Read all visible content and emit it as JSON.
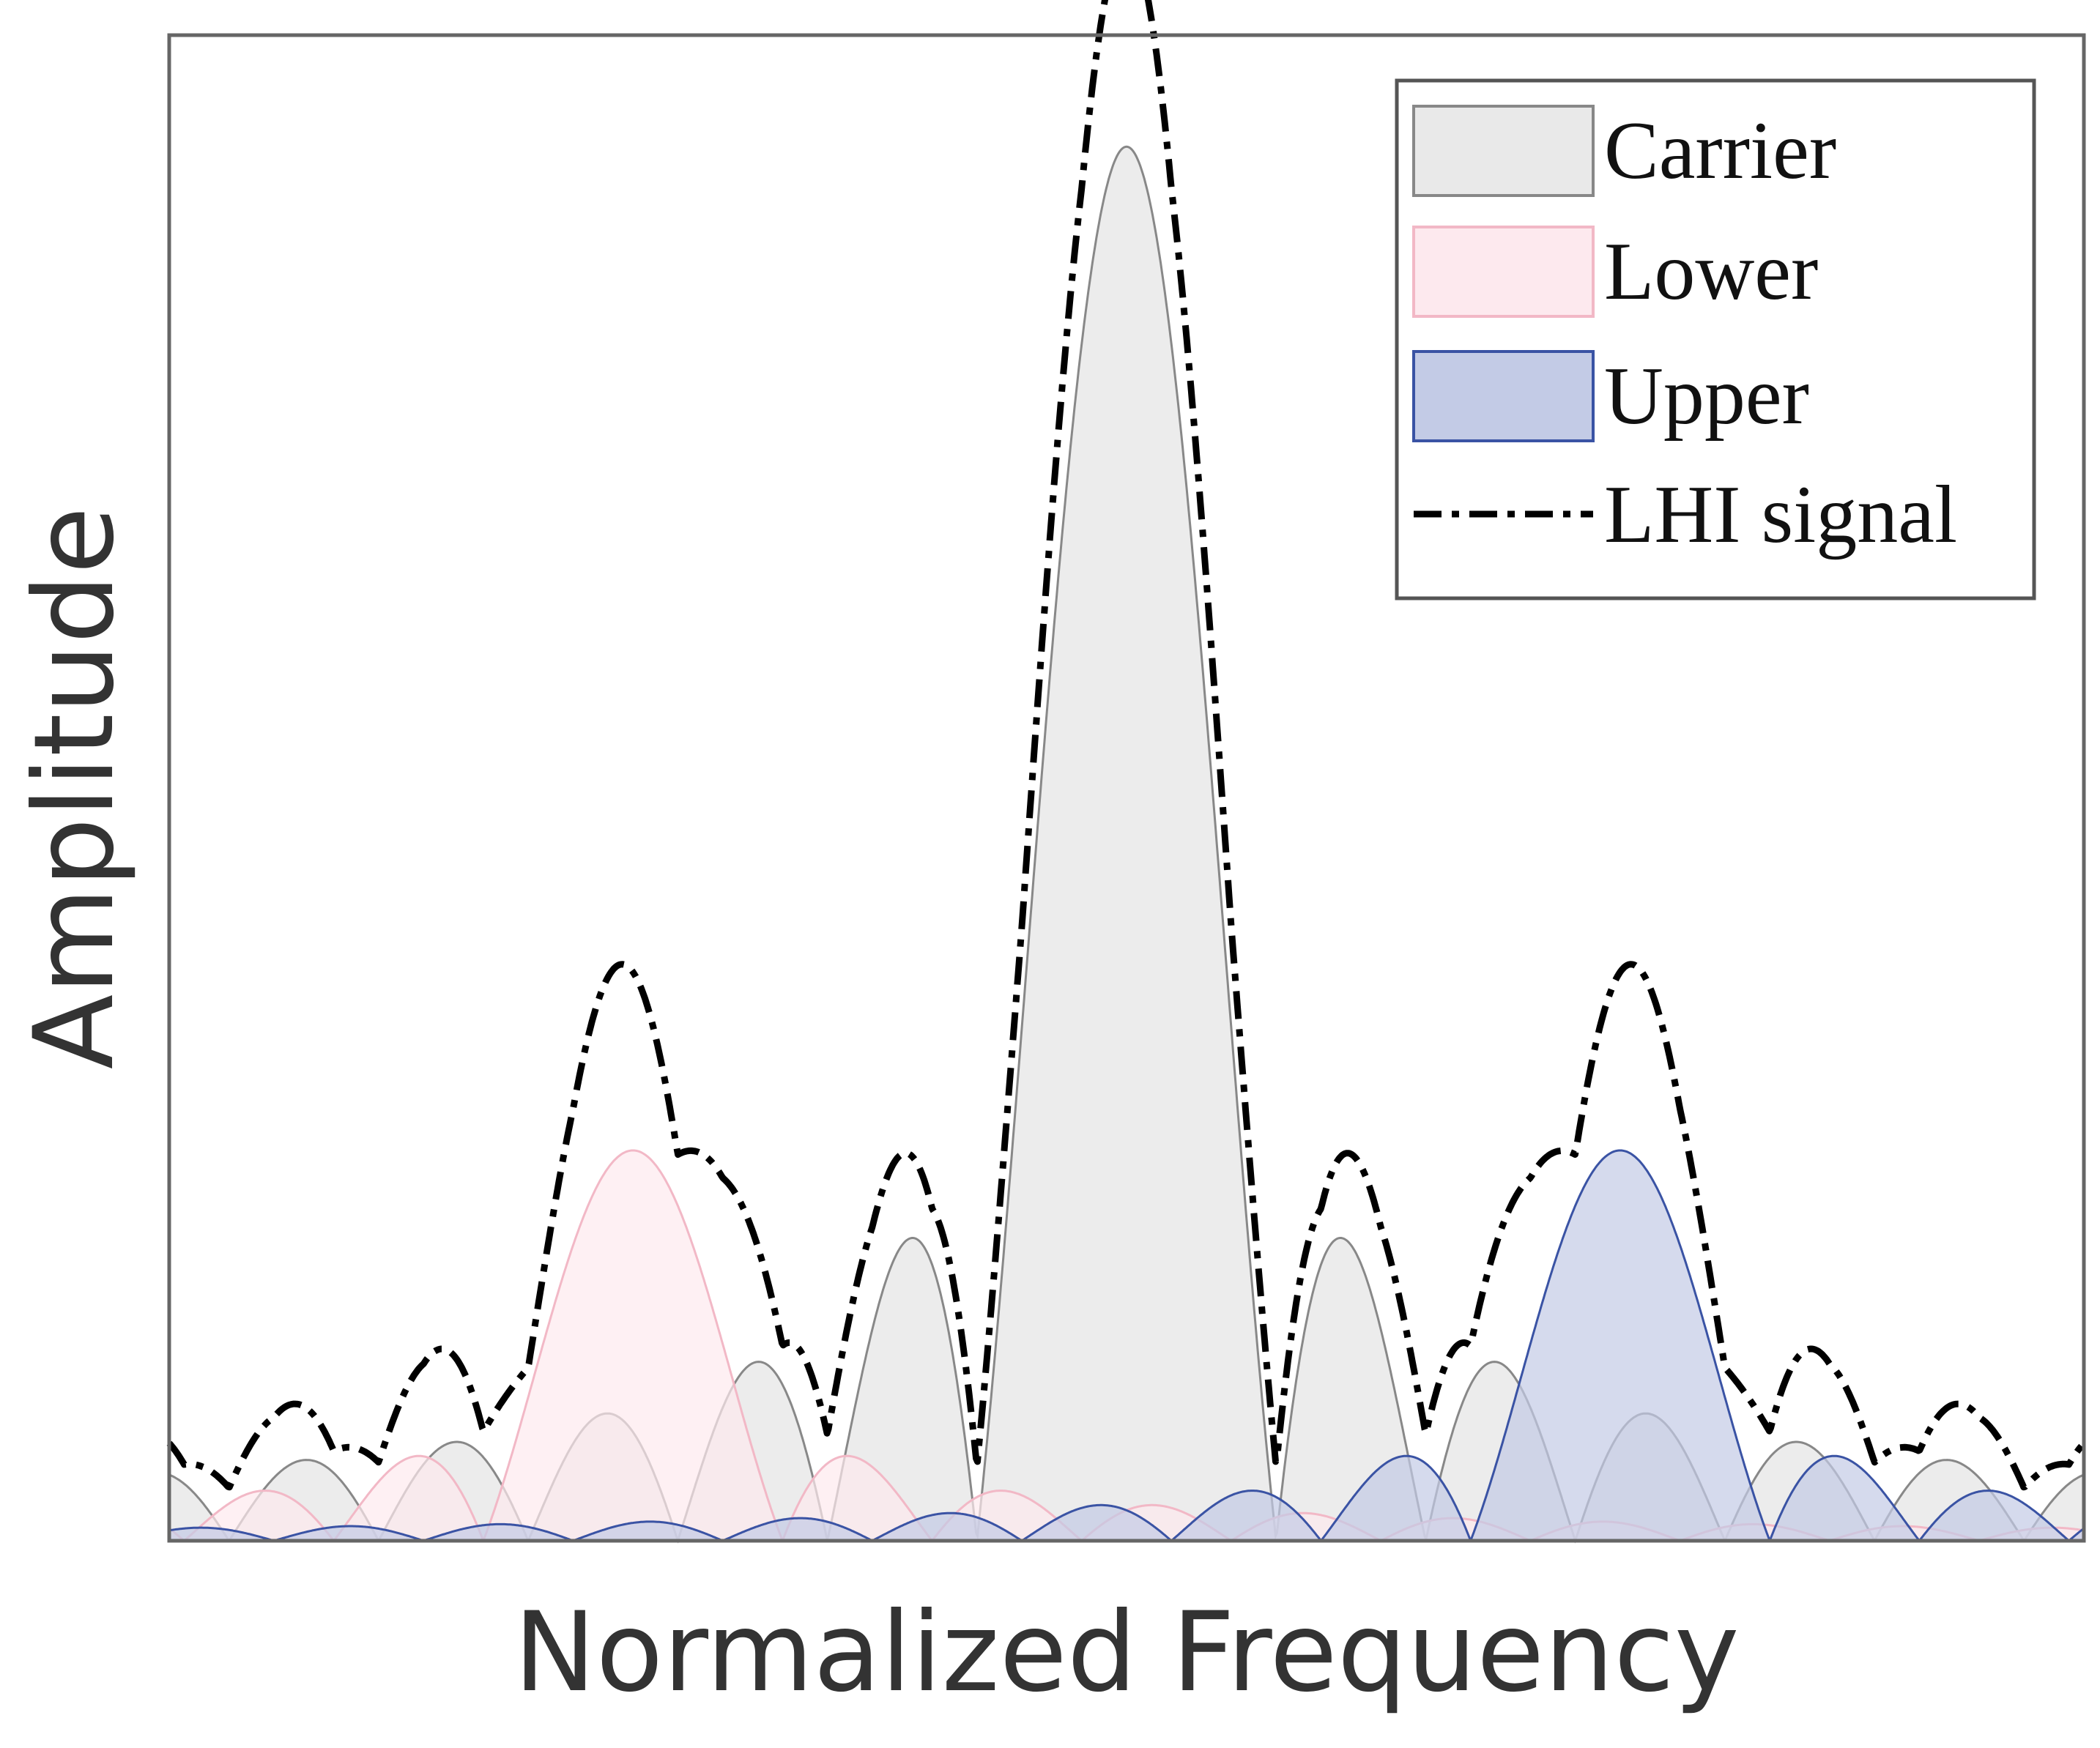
{
  "chart_data": {
    "type": "area",
    "title": "",
    "xlabel": "Normalized Frequency",
    "ylabel": "Amplitude",
    "xlim": [
      -6.4,
      6.4
    ],
    "ylim": [
      0,
      1.08
    ],
    "x_ticks_shown": false,
    "y_ticks_shown": false,
    "grid": false,
    "legend": {
      "position": "top-right",
      "entries": [
        {
          "label": "Carrier",
          "style": "filled-area",
          "color": "#888888",
          "fill": "#e9e9e9"
        },
        {
          "label": "Lower",
          "style": "filled-area",
          "color": "#f2b8c6",
          "fill": "#fde9ee"
        },
        {
          "label": "Upper",
          "style": "filled-area",
          "color": "#3a53a4",
          "fill": "#c3cbe6"
        },
        {
          "label": "LHI signal",
          "style": "dash-dot",
          "color": "#000000"
        }
      ]
    },
    "series": [
      {
        "name": "Carrier",
        "kind": "sinc-magnitude",
        "center": 0,
        "amplitude": 1.0,
        "color": "#888888",
        "fill": "#e9e9e9"
      },
      {
        "name": "Lower",
        "kind": "sinc-magnitude",
        "center": -3.3,
        "amplitude": 0.28,
        "color": "#f2b8c6",
        "fill": "#fde9ee"
      },
      {
        "name": "Upper",
        "kind": "sinc-magnitude",
        "center": 3.3,
        "amplitude": 0.28,
        "color": "#3a53a4",
        "fill": "#c3cbe6"
      },
      {
        "name": "LHI signal",
        "kind": "sum-envelope",
        "color": "#000000",
        "dash": "dash-dot"
      }
    ]
  }
}
